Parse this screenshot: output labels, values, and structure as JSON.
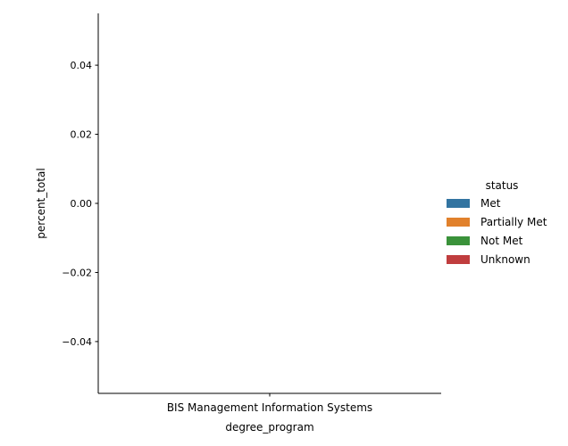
{
  "chart_data": {
    "type": "bar",
    "categories": [
      "BIS Management Information Systems"
    ],
    "series": [
      {
        "name": "Met",
        "values": [
          0.0
        ],
        "color": "#3274a1"
      },
      {
        "name": "Partially Met",
        "values": [
          0.0
        ],
        "color": "#e1812c"
      },
      {
        "name": "Not Met",
        "values": [
          0.0
        ],
        "color": "#3a923a"
      },
      {
        "name": "Unknown",
        "values": [
          0.0
        ],
        "color": "#c03d3e"
      }
    ],
    "xlabel": "degree_program",
    "ylabel": "percent_total",
    "ylim": [
      -0.055,
      0.055
    ],
    "yticks": [
      -0.04,
      -0.02,
      0.0,
      0.02,
      0.04
    ],
    "ytick_labels": [
      "−0.04",
      "−0.02",
      "0.00",
      "0.02",
      "0.04"
    ],
    "legend": {
      "title": "status",
      "placement": "right"
    },
    "grid": false
  }
}
